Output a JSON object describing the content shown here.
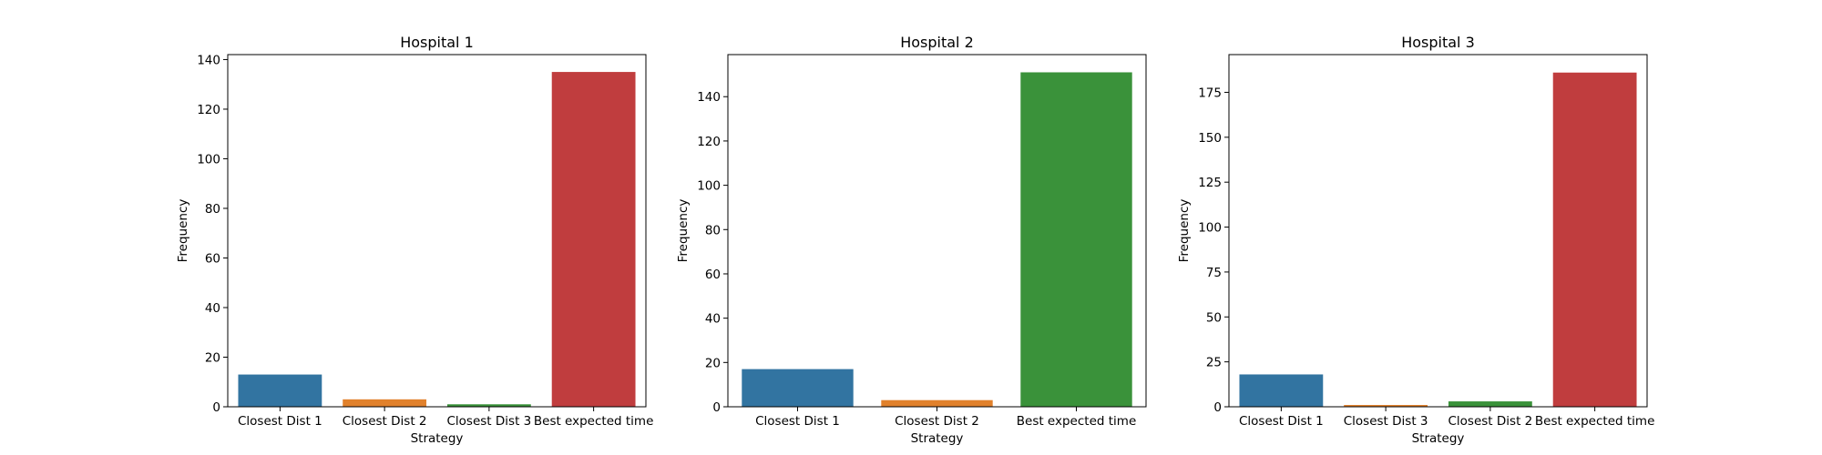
{
  "chart_data": [
    {
      "type": "bar",
      "title": "Hospital 1",
      "xlabel": "Strategy",
      "ylabel": "Frequency",
      "categories": [
        "Closest Dist 1",
        "Closest Dist 2",
        "Closest Dist 3",
        "Best expected time"
      ],
      "values": [
        13,
        3,
        1,
        135
      ],
      "colors": [
        "#3274a1",
        "#e1812c",
        "#3a923a",
        "#c03d3e"
      ],
      "ylim": [
        0,
        142
      ],
      "yticks": [
        0,
        20,
        40,
        60,
        80,
        100,
        120,
        140
      ],
      "ytick_labels": [
        "0",
        "20",
        "40",
        "60",
        "80",
        "100",
        "120",
        "140"
      ],
      "grid": false,
      "legend": "none"
    },
    {
      "type": "bar",
      "title": "Hospital 2",
      "xlabel": "Strategy",
      "ylabel": "Frequency",
      "categories": [
        "Closest Dist 1",
        "Closest Dist 2",
        "Best expected time"
      ],
      "values": [
        17,
        3,
        151
      ],
      "colors": [
        "#3274a1",
        "#e1812c",
        "#3a923a"
      ],
      "ylim": [
        0,
        159
      ],
      "yticks": [
        0,
        20,
        40,
        60,
        80,
        100,
        120,
        140
      ],
      "ytick_labels": [
        "0",
        "20",
        "40",
        "60",
        "80",
        "100",
        "120",
        "140"
      ],
      "grid": false,
      "legend": "none"
    },
    {
      "type": "bar",
      "title": "Hospital 3",
      "xlabel": "Strategy",
      "ylabel": "Frequency",
      "categories": [
        "Closest Dist 1",
        "Closest Dist 3",
        "Closest Dist 2",
        "Best expected time"
      ],
      "values": [
        18,
        1,
        3,
        186
      ],
      "colors": [
        "#3274a1",
        "#e1812c",
        "#3a923a",
        "#c03d3e"
      ],
      "ylim": [
        0,
        196
      ],
      "yticks": [
        0,
        25,
        50,
        75,
        100,
        125,
        150,
        175
      ],
      "ytick_labels": [
        "0",
        "25",
        "50",
        "75",
        "100",
        "125",
        "150",
        "175"
      ],
      "grid": false,
      "legend": "none"
    }
  ]
}
